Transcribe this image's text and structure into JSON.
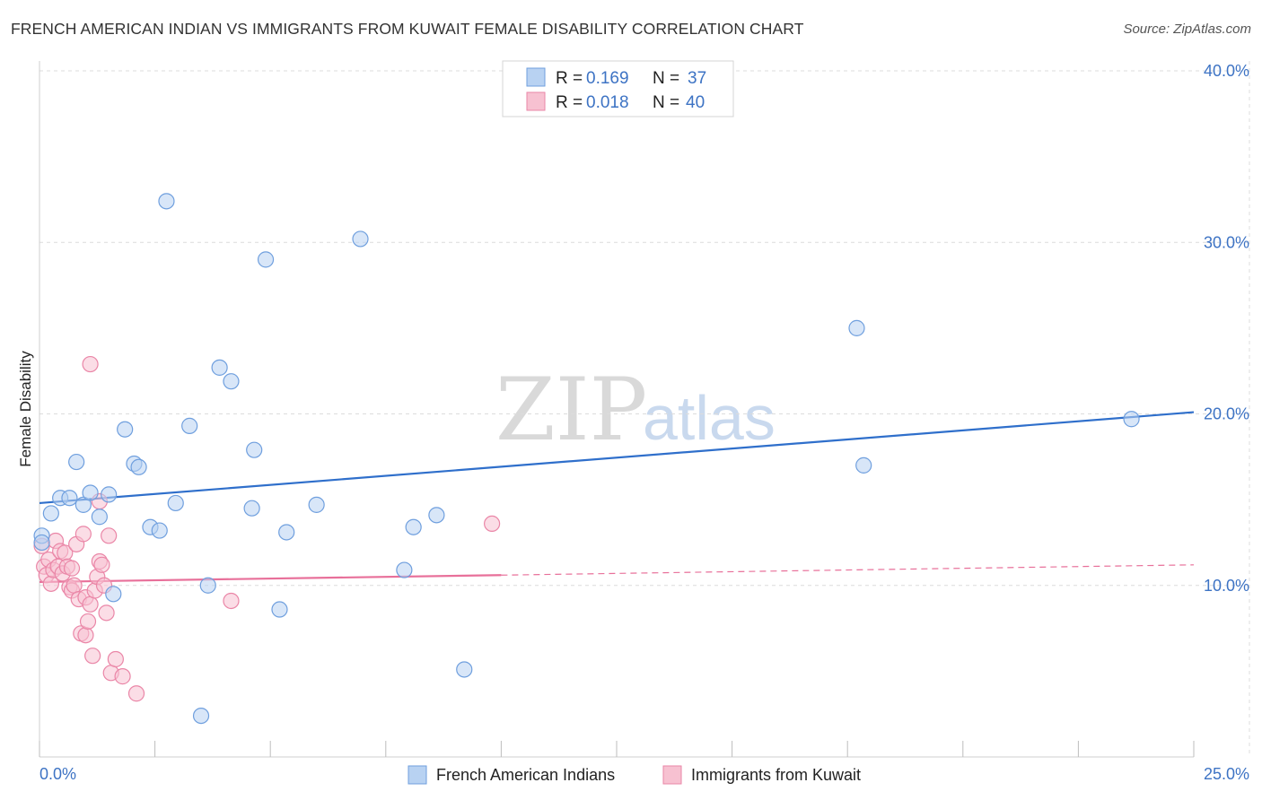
{
  "header": {
    "title": "FRENCH AMERICAN INDIAN VS IMMIGRANTS FROM KUWAIT FEMALE DISABILITY CORRELATION CHART",
    "source": "Source: ZipAtlas.com"
  },
  "watermark": {
    "zip": "ZIP",
    "atlas": "atlas"
  },
  "colors": {
    "blue_fill": "#b8d2f2",
    "blue_stroke": "#6f9fde",
    "blue_line": "#2f6fcb",
    "pink_fill": "#f7c1d1",
    "pink_stroke": "#ea86a7",
    "pink_line": "#e8709a",
    "tick_text": "#3d73c4",
    "grid": "#dcdcdc"
  },
  "chart_data": {
    "type": "scatter",
    "title": "FRENCH AMERICAN INDIAN VS IMMIGRANTS FROM KUWAIT FEMALE DISABILITY CORRELATION CHART",
    "xlabel": "",
    "ylabel": "Female Disability",
    "xlim": [
      0,
      25
    ],
    "ylim": [
      0,
      40
    ],
    "x_tick_labels": [
      "0.0%",
      "25.0%"
    ],
    "y_ticks": [
      10,
      20,
      30,
      40
    ],
    "y_tick_labels": [
      "10.0%",
      "20.0%",
      "30.0%",
      "40.0%"
    ],
    "grid": true,
    "legend": [
      {
        "name": "French American Indians",
        "r_label": "R =",
        "r": "0.169",
        "n_label": "N =",
        "n": "37"
      },
      {
        "name": "Immigrants from Kuwait",
        "r_label": "R =",
        "r": "0.018",
        "n_label": "N =",
        "n": "40"
      }
    ],
    "series": [
      {
        "name": "French American Indians",
        "color": "blue",
        "points": [
          [
            0.05,
            12.9
          ],
          [
            0.25,
            14.2
          ],
          [
            0.45,
            15.1
          ],
          [
            0.65,
            15.1
          ],
          [
            0.8,
            17.2
          ],
          [
            0.95,
            14.7
          ],
          [
            1.1,
            15.4
          ],
          [
            1.3,
            14.0
          ],
          [
            1.5,
            15.3
          ],
          [
            1.6,
            9.5
          ],
          [
            1.85,
            19.1
          ],
          [
            2.05,
            17.1
          ],
          [
            2.15,
            16.9
          ],
          [
            2.4,
            13.4
          ],
          [
            2.6,
            13.2
          ],
          [
            2.75,
            32.4
          ],
          [
            2.95,
            14.8
          ],
          [
            3.25,
            19.3
          ],
          [
            3.5,
            2.4
          ],
          [
            3.65,
            10.0
          ],
          [
            3.9,
            22.7
          ],
          [
            4.15,
            21.9
          ],
          [
            4.6,
            14.5
          ],
          [
            4.65,
            17.9
          ],
          [
            4.9,
            29.0
          ],
          [
            5.2,
            8.6
          ],
          [
            5.35,
            13.1
          ],
          [
            6.0,
            14.7
          ],
          [
            6.95,
            30.2
          ],
          [
            7.9,
            10.9
          ],
          [
            8.1,
            13.4
          ],
          [
            8.6,
            14.1
          ],
          [
            9.2,
            5.1
          ],
          [
            17.7,
            25.0
          ],
          [
            17.85,
            17.0
          ],
          [
            23.65,
            19.7
          ],
          [
            0.05,
            12.5
          ]
        ]
      },
      {
        "name": "Immigrants from Kuwait",
        "color": "pink",
        "points": [
          [
            0.05,
            12.3
          ],
          [
            0.1,
            11.1
          ],
          [
            0.15,
            10.6
          ],
          [
            0.2,
            11.5
          ],
          [
            0.25,
            10.1
          ],
          [
            0.3,
            10.9
          ],
          [
            0.35,
            12.6
          ],
          [
            0.4,
            11.1
          ],
          [
            0.45,
            12.0
          ],
          [
            0.5,
            10.7
          ],
          [
            0.55,
            11.9
          ],
          [
            0.6,
            11.1
          ],
          [
            0.65,
            9.9
          ],
          [
            0.7,
            9.7
          ],
          [
            0.75,
            10.0
          ],
          [
            0.8,
            12.4
          ],
          [
            0.85,
            9.2
          ],
          [
            0.9,
            7.2
          ],
          [
            0.95,
            13.0
          ],
          [
            1.0,
            9.3
          ],
          [
            1.0,
            7.1
          ],
          [
            1.05,
            7.9
          ],
          [
            1.1,
            8.9
          ],
          [
            1.15,
            5.9
          ],
          [
            1.1,
            22.9
          ],
          [
            1.2,
            9.7
          ],
          [
            1.25,
            10.5
          ],
          [
            1.3,
            11.4
          ],
          [
            1.3,
            14.9
          ],
          [
            1.35,
            11.2
          ],
          [
            1.4,
            10.0
          ],
          [
            1.45,
            8.4
          ],
          [
            1.5,
            12.9
          ],
          [
            1.55,
            4.9
          ],
          [
            1.65,
            5.7
          ],
          [
            1.8,
            4.7
          ],
          [
            2.1,
            3.7
          ],
          [
            4.15,
            9.1
          ],
          [
            9.8,
            13.6
          ],
          [
            0.7,
            11.0
          ]
        ]
      }
    ],
    "trend_lines": [
      {
        "series": "French American Indians",
        "x": [
          0,
          25
        ],
        "y": [
          14.8,
          20.1
        ],
        "style": "solid"
      },
      {
        "series": "Immigrants from Kuwait",
        "x": [
          0,
          10
        ],
        "y": [
          10.2,
          10.6
        ],
        "style": "solid"
      },
      {
        "series": "Immigrants from Kuwait",
        "x": [
          10,
          25
        ],
        "y": [
          10.6,
          11.2
        ],
        "style": "dashed"
      }
    ]
  }
}
